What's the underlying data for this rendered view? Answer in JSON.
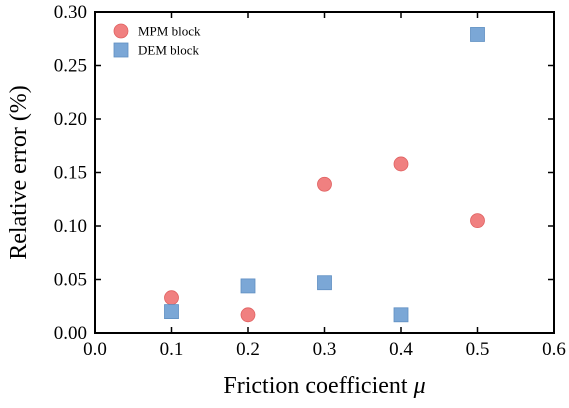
{
  "chart_data": {
    "type": "scatter",
    "xlabel": "Friction coefficient ",
    "xlabel_symbol": "μ",
    "ylabel": "Relative error (%)",
    "xlim": [
      0.0,
      0.6
    ],
    "ylim": [
      0.0,
      0.3
    ],
    "x_ticks": [
      "0.0",
      "0.1",
      "0.2",
      "0.3",
      "0.4",
      "0.5",
      "0.6"
    ],
    "y_ticks": [
      "0.00",
      "0.05",
      "0.10",
      "0.15",
      "0.20",
      "0.25",
      "0.30"
    ],
    "grid": false,
    "legend_position": "top-left",
    "series": [
      {
        "name": "MPM block",
        "marker": "circle",
        "color": "#f08080",
        "x": [
          0.1,
          0.2,
          0.3,
          0.4,
          0.5
        ],
        "y": [
          0.033,
          0.017,
          0.139,
          0.158,
          0.105
        ]
      },
      {
        "name": "DEM block",
        "marker": "square",
        "color": "#7ba7d6",
        "x": [
          0.1,
          0.2,
          0.3,
          0.4,
          0.5
        ],
        "y": [
          0.02,
          0.044,
          0.047,
          0.017,
          0.279
        ]
      }
    ]
  }
}
